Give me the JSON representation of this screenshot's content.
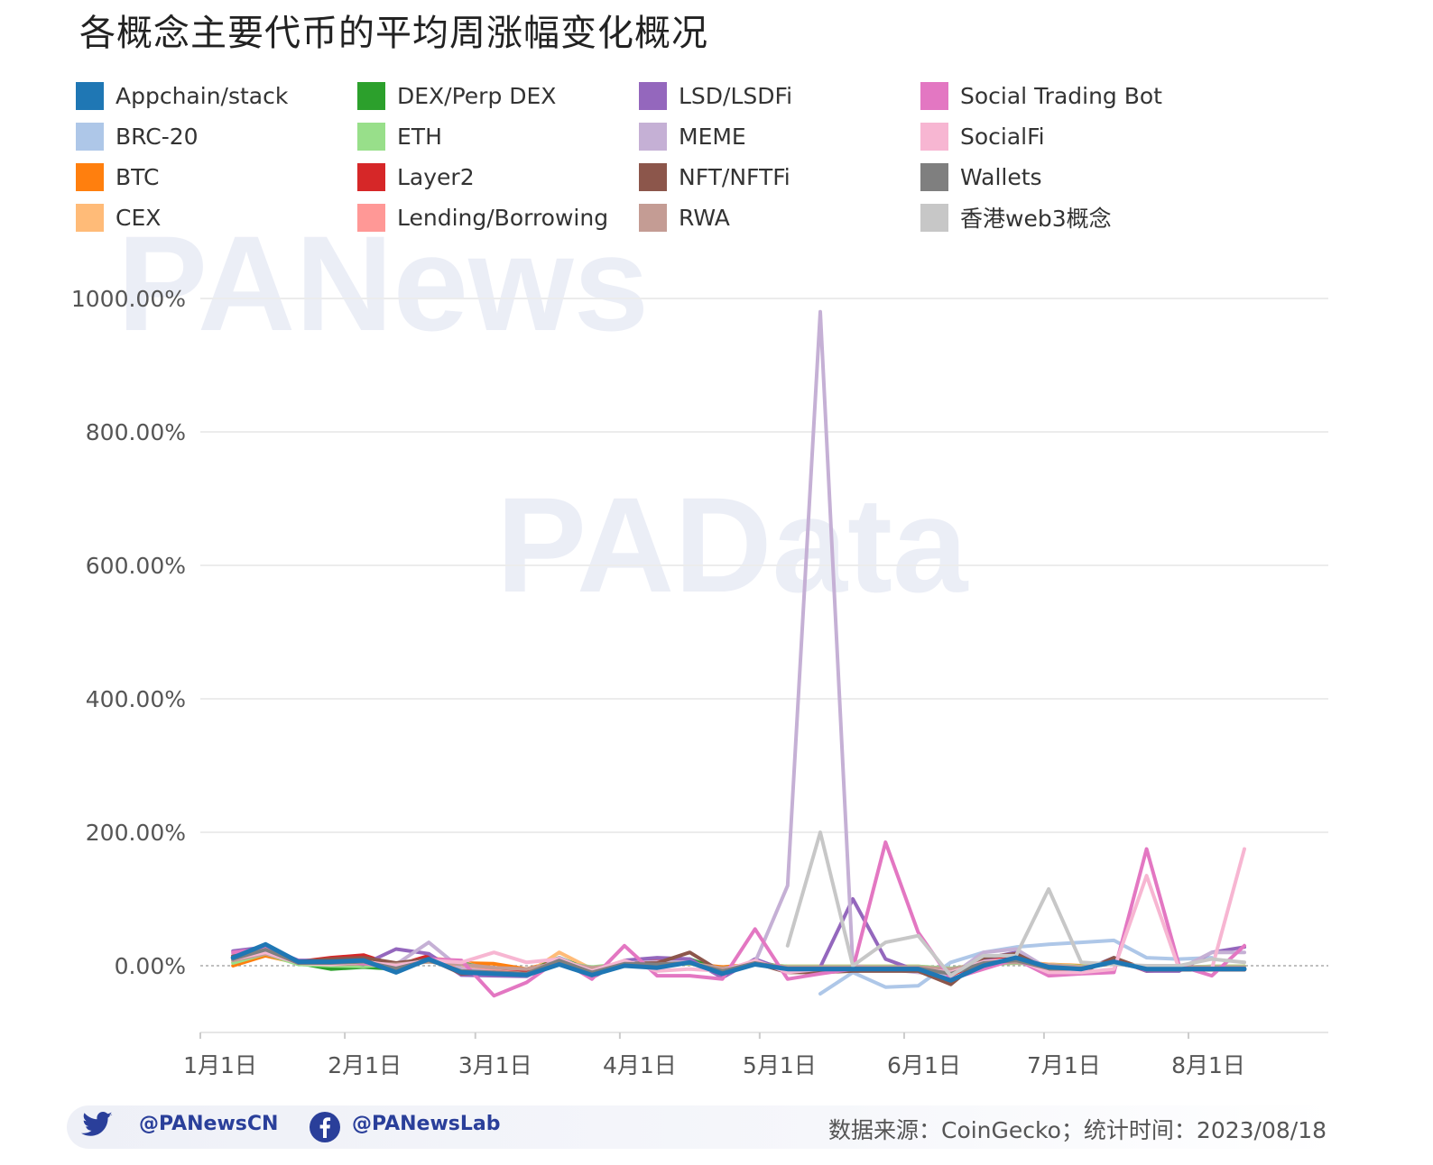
{
  "title": "各概念主要代币的平均周涨幅变化概况",
  "watermarks": [
    "PANews",
    "PAData"
  ],
  "footer": {
    "twitter_handle": "@PANewsCN",
    "facebook_handle": "@PANewsLab",
    "source": "数据来源：CoinGecko；统计时间：2023/08/18",
    "icons": [
      "twitter-icon",
      "facebook-icon"
    ]
  },
  "chart_data": {
    "type": "line",
    "title": "各概念主要代币的平均周涨幅变化概况",
    "xlabel": "",
    "ylabel": "",
    "x_tick_labels": [
      "1月1日",
      "2月1日",
      "3月1日",
      "4月1日",
      "5月1日",
      "6月1日",
      "7月1日",
      "8月1日"
    ],
    "y_tick_labels": [
      "0.00%",
      "200.00%",
      "400.00%",
      "600.00%",
      "800.00%",
      "1000.00%"
    ],
    "y_ticks": [
      0,
      200,
      400,
      600,
      800,
      1000
    ],
    "ylim": [
      -100,
      1000
    ],
    "grid": true,
    "legend_position": "top",
    "weeks": [
      "2023-01-08",
      "2023-01-15",
      "2023-01-22",
      "2023-01-29",
      "2023-02-05",
      "2023-02-12",
      "2023-02-19",
      "2023-02-26",
      "2023-03-05",
      "2023-03-12",
      "2023-03-19",
      "2023-03-26",
      "2023-04-02",
      "2023-04-09",
      "2023-04-16",
      "2023-04-23",
      "2023-04-30",
      "2023-05-07",
      "2023-05-14",
      "2023-05-21",
      "2023-05-28",
      "2023-06-04",
      "2023-06-11",
      "2023-06-18",
      "2023-06-25",
      "2023-07-02",
      "2023-07-09",
      "2023-07-16",
      "2023-07-23",
      "2023-07-30",
      "2023-08-06",
      "2023-08-13"
    ],
    "series": [
      {
        "name": "Appchain/stack",
        "color": "#1f77b4",
        "values": [
          12,
          32,
          6,
          6,
          8,
          -10,
          10,
          -10,
          -12,
          -14,
          2,
          -14,
          0,
          -3,
          5,
          -12,
          2,
          -5,
          -5,
          -5,
          -5,
          -5,
          -22,
          0,
          12,
          -2,
          -5,
          6,
          -5,
          -5,
          -5,
          -5
        ]
      },
      {
        "name": "BRC-20",
        "color": "#aec7e8",
        "values": [
          null,
          null,
          null,
          null,
          null,
          null,
          null,
          null,
          null,
          null,
          null,
          null,
          null,
          null,
          null,
          null,
          null,
          null,
          -42,
          -10,
          -32,
          -30,
          5,
          20,
          28,
          32,
          35,
          38,
          12,
          10,
          12,
          null
        ]
      },
      {
        "name": "BTC",
        "color": "#ff7f0e",
        "values": [
          0,
          15,
          4,
          2,
          3,
          2,
          10,
          4,
          3,
          -5,
          8,
          -3,
          3,
          2,
          3,
          -2,
          2,
          -1,
          -1,
          -1,
          -1,
          -1,
          -5,
          4,
          6,
          2,
          0,
          3,
          -2,
          -3,
          -1,
          -1
        ]
      },
      {
        "name": "CEX",
        "color": "#ffbb78",
        "values": [
          5,
          20,
          5,
          2,
          -2,
          0,
          12,
          6,
          -8,
          -12,
          20,
          -5,
          2,
          0,
          8,
          -6,
          4,
          -2,
          -2,
          -2,
          -2,
          -2,
          -8,
          2,
          4,
          2,
          -1,
          4,
          -2,
          -2,
          -2,
          -2
        ]
      },
      {
        "name": "DEX/Perp DEX",
        "color": "#2ca02c",
        "values": [
          8,
          22,
          4,
          -5,
          -2,
          -5,
          8,
          4,
          -6,
          -10,
          12,
          -8,
          4,
          0,
          10,
          -8,
          6,
          -3,
          -3,
          -3,
          -3,
          -3,
          -10,
          6,
          10,
          -3,
          -5,
          8,
          -4,
          -5,
          -4,
          -4
        ]
      },
      {
        "name": "ETH",
        "color": "#98df8a",
        "values": [
          4,
          18,
          2,
          0,
          -1,
          2,
          6,
          2,
          -4,
          -6,
          5,
          -2,
          3,
          2,
          3,
          -4,
          3,
          -1,
          -1,
          -1,
          -1,
          -1,
          -4,
          2,
          4,
          1,
          -1,
          3,
          -1,
          -2,
          -1,
          -1
        ]
      },
      {
        "name": "Layer2",
        "color": "#d62728",
        "values": [
          15,
          28,
          6,
          12,
          16,
          0,
          15,
          -8,
          -6,
          -10,
          10,
          -12,
          5,
          8,
          6,
          -8,
          4,
          -6,
          -6,
          -6,
          -6,
          -6,
          -15,
          8,
          15,
          -4,
          -8,
          10,
          -8,
          -6,
          -6,
          -6
        ]
      },
      {
        "name": "Lending/Borrowing",
        "color": "#ff9896",
        "values": [
          10,
          22,
          4,
          2,
          4,
          -2,
          8,
          -4,
          -8,
          -12,
          8,
          -8,
          2,
          2,
          4,
          -6,
          3,
          -3,
          -3,
          -3,
          -3,
          -3,
          -10,
          4,
          8,
          -2,
          -4,
          6,
          -4,
          -4,
          -4,
          -4
        ]
      },
      {
        "name": "LSD/LSDFi",
        "color": "#9467bd",
        "values": [
          22,
          28,
          8,
          8,
          2,
          25,
          18,
          -14,
          -15,
          -16,
          10,
          -18,
          8,
          12,
          10,
          -18,
          10,
          -8,
          -2,
          100,
          10,
          -8,
          -25,
          10,
          20,
          -8,
          -8,
          12,
          -8,
          -8,
          20,
          28
        ]
      },
      {
        "name": "MEME",
        "color": "#c5b0d5",
        "values": [
          18,
          25,
          6,
          4,
          6,
          2,
          35,
          -5,
          -10,
          -15,
          12,
          -10,
          4,
          6,
          5,
          -10,
          5,
          120,
          980,
          0,
          -5,
          -10,
          -15,
          20,
          25,
          -5,
          -5,
          10,
          -5,
          -5,
          20,
          20
        ]
      },
      {
        "name": "NFT/NFTFi",
        "color": "#8c564b",
        "values": [
          14,
          24,
          6,
          10,
          12,
          4,
          10,
          -12,
          -10,
          -12,
          8,
          -10,
          3,
          4,
          20,
          -10,
          4,
          -10,
          -10,
          -8,
          -8,
          -8,
          -28,
          12,
          18,
          -6,
          -10,
          12,
          -6,
          -6,
          -6,
          -6
        ]
      },
      {
        "name": "RWA",
        "color": "#c49c94",
        "values": [
          8,
          18,
          5,
          2,
          3,
          2,
          6,
          2,
          -3,
          -5,
          5,
          -3,
          2,
          2,
          4,
          -4,
          3,
          -2,
          -2,
          -2,
          -2,
          -2,
          -5,
          3,
          5,
          1,
          -2,
          3,
          -2,
          -2,
          -2,
          -2
        ]
      },
      {
        "name": "Social Trading Bot",
        "color": "#e377c2",
        "values": [
          20,
          26,
          4,
          6,
          4,
          -5,
          10,
          8,
          -45,
          -25,
          10,
          -20,
          30,
          -15,
          -15,
          -20,
          55,
          -20,
          -12,
          -5,
          185,
          50,
          -20,
          -5,
          10,
          -15,
          -12,
          -10,
          175,
          0,
          -15,
          30
        ]
      },
      {
        "name": "SocialFi",
        "color": "#f7b6d2",
        "values": [
          10,
          20,
          4,
          2,
          6,
          0,
          8,
          5,
          20,
          5,
          10,
          -8,
          8,
          -8,
          -5,
          -8,
          8,
          -10,
          -5,
          -5,
          -5,
          -5,
          -10,
          6,
          10,
          -10,
          -10,
          -5,
          135,
          -5,
          -5,
          175
        ]
      },
      {
        "name": "Wallets",
        "color": "#7f7f7f",
        "values": [
          10,
          24,
          4,
          4,
          6,
          -4,
          8,
          -8,
          -10,
          -12,
          8,
          -10,
          3,
          2,
          4,
          -8,
          4,
          -4,
          -4,
          -4,
          -4,
          -4,
          -12,
          4,
          8,
          -4,
          -4,
          4,
          -4,
          -4,
          -4,
          -4
        ]
      },
      {
        "name": "香港web3概念",
        "color": "#c7c7c7",
        "values": [
          null,
          null,
          null,
          null,
          null,
          null,
          null,
          null,
          null,
          null,
          null,
          null,
          null,
          null,
          null,
          null,
          null,
          30,
          200,
          0,
          35,
          45,
          -15,
          15,
          15,
          115,
          5,
          2,
          0,
          0,
          10,
          5
        ]
      }
    ]
  }
}
